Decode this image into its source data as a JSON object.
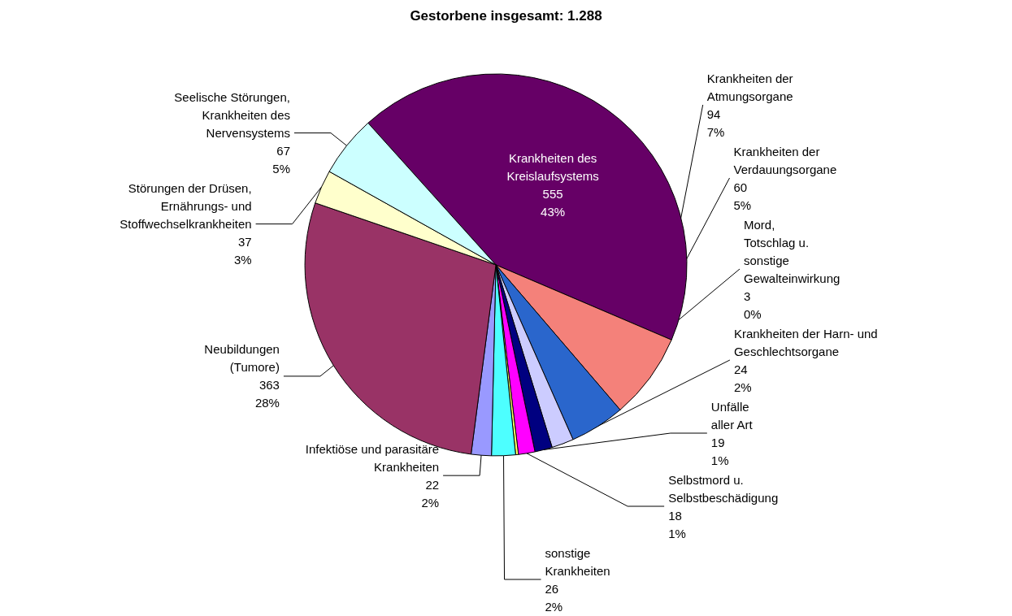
{
  "chart_data": {
    "type": "pie",
    "title": "Gestorbene insgesamt: 1.288",
    "categories": [
      "Krankheiten des\nKreislaufsystems",
      "Krankheiten der\nAtmungsorgane",
      "Krankheiten der\nVerdauungsorgane",
      "Krankheiten der Harn- und\nGeschlechtsorgane",
      "Unfälle\naller Art",
      "Selbstmord u.\nSelbstbeschädigung",
      "Mord,\nTotschlag u.\nsonstige\nGewalteinwirkung",
      "sonstige\nKrankheiten",
      "Infektiöse und parasitäre\nKrankheiten",
      "Neubildungen\n(Tumore)",
      "Störungen der Drüsen,\nErnährungs- und\nStoffwechselkrankheiten",
      "Seelische Störungen,\nKrankheiten des\nNervensystems"
    ],
    "values": [
      555,
      94,
      60,
      24,
      19,
      18,
      3,
      26,
      22,
      363,
      37,
      67
    ],
    "value_labels": [
      "555\n43%",
      "94\n7%",
      "60\n5%",
      "24\n2%",
      "19\n1%",
      "18\n1%",
      "3\n0%",
      "26\n2%",
      "22\n2%",
      "363\n28%",
      "37\n3%",
      "67\n5%"
    ],
    "colors": [
      "#660066",
      "#f4817a",
      "#2a66cc",
      "#ccccff",
      "#000080",
      "#ff00ff",
      "#ffff66",
      "#4dffff",
      "#9999ff",
      "#993366",
      "#ffffcc",
      "#ccffff"
    ]
  }
}
